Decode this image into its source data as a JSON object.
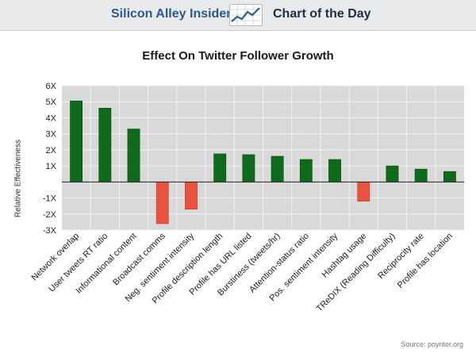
{
  "header": {
    "brand": "Silicon Alley Insider",
    "logo_icon": "chart-trend-icon",
    "label": "Chart of the Day"
  },
  "source": "Source: poynter.org",
  "colors": {
    "positive": "#0e6b1c",
    "negative": "#e8533f",
    "plot_background": "#d9d9d9",
    "gridline": "#f2f2f2",
    "brand": "#2b5a8c"
  },
  "chart_data": {
    "type": "bar",
    "title": "Effect On Twitter Follower Growth",
    "xlabel": "",
    "ylabel": "Relative Effectiveness",
    "ylim": [
      -3,
      6
    ],
    "grid": true,
    "yticks": [
      "6X",
      "5X",
      "4X",
      "3X",
      "2X",
      "1X",
      "",
      "-1X",
      "-2X",
      "-3X"
    ],
    "categories": [
      "Network overlap",
      "User tweets RT ratio",
      "Informational content",
      "Broadcast comms",
      "Neg. sentiment intensity",
      "Profile description length",
      "Profile has URL listed",
      "Burstiness (tweets/hr)",
      "Attention-status ratio",
      "Pos. sentiment intensity",
      "Hashtag usage",
      "TReDIX (Reading Difficulty)",
      "Reciprocity rate",
      "Profile has location"
    ],
    "values": [
      5.05,
      4.6,
      3.3,
      -2.6,
      -1.7,
      1.75,
      1.7,
      1.6,
      1.4,
      1.4,
      -1.2,
      1.0,
      0.8,
      0.65
    ]
  }
}
